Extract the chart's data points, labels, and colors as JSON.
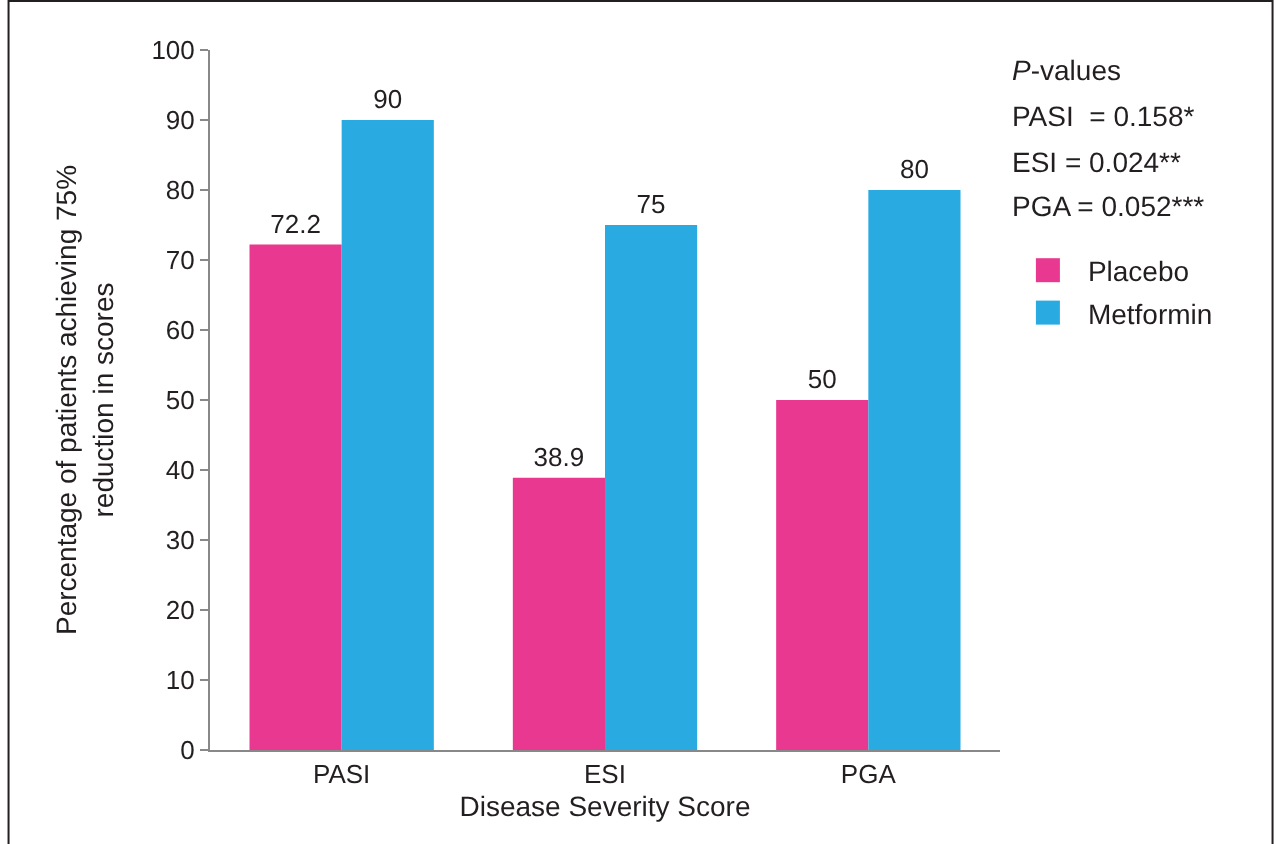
{
  "chart_data": {
    "type": "bar",
    "xlabel": "Disease Severity Score",
    "ylabel": "Percentage of patients achieving 75% reduction in scores",
    "categories": [
      "PASI",
      "ESI",
      "PGA"
    ],
    "series": [
      {
        "name": "Placebo",
        "color": "#e8388f",
        "values": [
          72.2,
          38.9,
          50
        ]
      },
      {
        "name": "Metformin",
        "color": "#29abe2",
        "values": [
          90,
          75,
          80
        ]
      }
    ],
    "ylim": [
      0,
      100
    ],
    "yticks": [
      0,
      10,
      20,
      30,
      40,
      50,
      60,
      70,
      80,
      90,
      100
    ],
    "data_labels": true,
    "legend": "right",
    "annotations": [
      "P-values",
      "PASI  = 0.158*",
      "ESI = 0.024**",
      "PGA = 0.052***"
    ]
  }
}
